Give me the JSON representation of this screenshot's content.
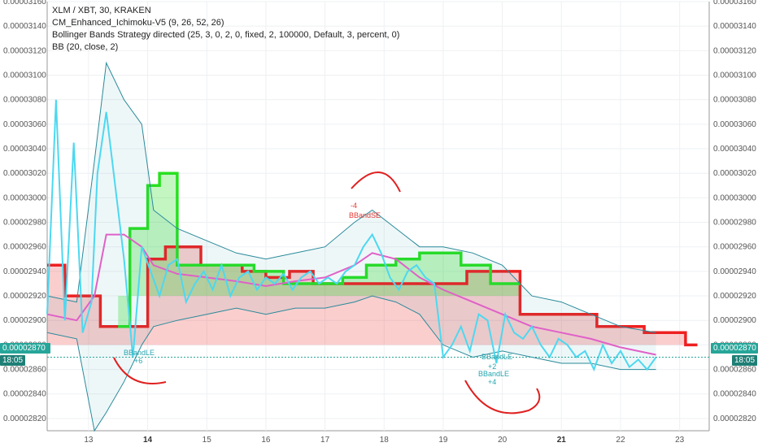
{
  "header": {
    "symbol_line": "XLM / XBT, 30, KRAKEN",
    "indicators": [
      "CM_Enhanced_Ichimoku-V5 (9, 26, 52, 26)",
      "Bollinger Bands Strategy directed (25, 3, 0, 2, 0, fixed, 2, 100000, Default, 3, percent, 0)",
      "BB (20, close, 2)"
    ]
  },
  "price_tag": {
    "price": "0.00002870",
    "countdown": "18:05",
    "color": "#26a69a"
  },
  "annotations": [
    {
      "text": "BBandSE",
      "color": "#e53935"
    },
    {
      "text": "-4",
      "color": "#e53935"
    },
    {
      "text": "BBandLE",
      "color": "#26a6b0"
    },
    {
      "text": "+6",
      "color": "#26a6b0"
    },
    {
      "text": "BBandLE",
      "color": "#26a6b0"
    },
    {
      "text": "+2",
      "color": "#26a6b0"
    },
    {
      "text": "BBandLE",
      "color": "#26a6b0"
    },
    {
      "text": "+4",
      "color": "#26a6b0"
    }
  ],
  "chart_data": {
    "type": "line",
    "title": "XLM / XBT, 30, KRAKEN",
    "x_ticks": [
      "13",
      "14",
      "15",
      "16",
      "17",
      "18",
      "19",
      "20",
      "21",
      "22",
      "23"
    ],
    "x_ticks_bold": [
      "14",
      "21"
    ],
    "xlim": [
      12.3,
      23.5
    ],
    "ylim": [
      2.81e-05,
      3.16e-05
    ],
    "y_ticks": [
      "0.00002820",
      "0.00002840",
      "0.00002860",
      "0.00002880",
      "0.00002900",
      "0.00002920",
      "0.00002940",
      "0.00002960",
      "0.00002980",
      "0.00003000",
      "0.00003020",
      "0.00003040",
      "0.00003060",
      "0.00003080",
      "0.00003100",
      "0.00003120",
      "0.00003140",
      "0.00003160"
    ],
    "current_price": 2.87e-05,
    "colors": {
      "close": "#4dd8f0",
      "ichimoku_up": "#28e020",
      "ichimoku_down": "#ee2020",
      "bb": "#2a8a9a",
      "basis": "#e060c8"
    },
    "series": [
      {
        "role": "close",
        "x": [
          12.3,
          12.45,
          12.6,
          12.75,
          12.9,
          13.05,
          13.15,
          13.3,
          13.45,
          13.6,
          13.75,
          13.9,
          14.05,
          14.2,
          14.35,
          14.5,
          14.65,
          14.8,
          14.95,
          15.1,
          15.25,
          15.4,
          15.55,
          15.7,
          15.85,
          16.0,
          16.15,
          16.3,
          16.45,
          16.6,
          16.75,
          16.9,
          17.05,
          17.2,
          17.35,
          17.5,
          17.65,
          17.8,
          17.95,
          18.1,
          18.25,
          18.4,
          18.55,
          18.7,
          18.85,
          19.0,
          19.15,
          19.3,
          19.45,
          19.6,
          19.75,
          19.9,
          20.05,
          20.2,
          20.35,
          20.5,
          20.65,
          20.8,
          20.95,
          21.1,
          21.25,
          21.4,
          21.55,
          21.7,
          21.85,
          22.0,
          22.15,
          22.3,
          22.45,
          22.6
        ],
        "y": [
          2.905e-05,
          3.08e-05,
          2.9e-05,
          3.045e-05,
          2.89e-05,
          2.915e-05,
          3.02e-05,
          3.07e-05,
          3.01e-05,
          2.95e-05,
          2.87e-05,
          2.96e-05,
          2.94e-05,
          2.92e-05,
          2.945e-05,
          2.95e-05,
          2.915e-05,
          2.93e-05,
          2.94e-05,
          2.925e-05,
          2.945e-05,
          2.92e-05,
          2.935e-05,
          2.94e-05,
          2.925e-05,
          2.935e-05,
          2.93e-05,
          2.938e-05,
          2.925e-05,
          2.935e-05,
          2.94e-05,
          2.93e-05,
          2.935e-05,
          2.93e-05,
          2.94e-05,
          2.945e-05,
          2.96e-05,
          2.97e-05,
          2.955e-05,
          2.935e-05,
          2.925e-05,
          2.94e-05,
          2.945e-05,
          2.935e-05,
          2.93e-05,
          2.87e-05,
          2.88e-05,
          2.895e-05,
          2.875e-05,
          2.905e-05,
          2.9e-05,
          2.865e-05,
          2.905e-05,
          2.89e-05,
          2.885e-05,
          2.895e-05,
          2.88e-05,
          2.87e-05,
          2.885e-05,
          2.88e-05,
          2.87e-05,
          2.875e-05,
          2.86e-05,
          2.88e-05,
          2.865e-05,
          2.875e-05,
          2.862e-05,
          2.868e-05,
          2.86e-05,
          2.87e-05
        ]
      },
      {
        "role": "bb_upper",
        "x": [
          12.3,
          12.8,
          13.1,
          13.3,
          13.6,
          13.9,
          14.1,
          14.5,
          15.0,
          15.5,
          16.0,
          16.5,
          17.0,
          17.5,
          17.8,
          18.2,
          18.6,
          19.0,
          19.5,
          20.0,
          20.5,
          21.0,
          21.5,
          22.0,
          22.6
        ],
        "y": [
          2.92e-05,
          2.915e-05,
          3.03e-05,
          3.11e-05,
          3.08e-05,
          3.06e-05,
          2.99e-05,
          2.975e-05,
          2.965e-05,
          2.955e-05,
          2.95e-05,
          2.955e-05,
          2.96e-05,
          2.98e-05,
          2.99e-05,
          2.975e-05,
          2.96e-05,
          2.96e-05,
          2.955e-05,
          2.945e-05,
          2.92e-05,
          2.915e-05,
          2.905e-05,
          2.895e-05,
          2.89e-05
        ]
      },
      {
        "role": "bb_lower",
        "x": [
          12.3,
          12.8,
          13.1,
          13.3,
          13.6,
          13.9,
          14.1,
          14.5,
          15.0,
          15.5,
          16.0,
          16.5,
          17.0,
          17.5,
          17.8,
          18.2,
          18.6,
          19.0,
          19.5,
          20.0,
          20.5,
          21.0,
          21.5,
          22.0,
          22.6
        ],
        "y": [
          2.89e-05,
          2.885e-05,
          2.81e-05,
          2.825e-05,
          2.85e-05,
          2.88e-05,
          2.895e-05,
          2.9e-05,
          2.905e-05,
          2.91e-05,
          2.905e-05,
          2.91e-05,
          2.91e-05,
          2.915e-05,
          2.92e-05,
          2.915e-05,
          2.905e-05,
          2.88e-05,
          2.87e-05,
          2.875e-05,
          2.87e-05,
          2.865e-05,
          2.865e-05,
          2.86e-05,
          2.86e-05
        ]
      },
      {
        "role": "bb_basis",
        "x": [
          12.3,
          12.8,
          13.1,
          13.3,
          13.6,
          13.9,
          14.1,
          14.5,
          15.0,
          15.5,
          16.0,
          16.5,
          17.0,
          17.5,
          17.8,
          18.2,
          18.6,
          19.0,
          19.5,
          20.0,
          20.5,
          21.0,
          21.5,
          22.0,
          22.6
        ],
        "y": [
          2.905e-05,
          2.9e-05,
          2.92e-05,
          2.97e-05,
          2.97e-05,
          2.96e-05,
          2.945e-05,
          2.938e-05,
          2.935e-05,
          2.932e-05,
          2.928e-05,
          2.932e-05,
          2.935e-05,
          2.945e-05,
          2.955e-05,
          2.95e-05,
          2.935e-05,
          2.925e-05,
          2.915e-05,
          2.905e-05,
          2.895e-05,
          2.89e-05,
          2.885e-05,
          2.878e-05,
          2.872e-05
        ]
      },
      {
        "role": "ichimoku_cloud_red",
        "x": [
          12.3,
          12.6,
          12.9,
          13.2,
          13.5,
          13.7,
          14.0,
          14.3,
          14.6,
          14.9,
          15.2,
          15.6,
          16.0,
          16.4,
          16.8,
          17.2,
          19.4,
          19.8,
          20.3,
          20.8,
          21.2,
          21.6,
          22.0,
          22.4,
          22.8,
          23.1,
          23.3
        ],
        "y": [
          2.945e-05,
          2.92e-05,
          2.92e-05,
          2.895e-05,
          2.895e-05,
          2.895e-05,
          2.95e-05,
          2.96e-05,
          2.96e-05,
          2.945e-05,
          2.945e-05,
          2.94e-05,
          2.935e-05,
          2.94e-05,
          2.93e-05,
          2.93e-05,
          2.94e-05,
          2.94e-05,
          2.905e-05,
          2.905e-05,
          2.905e-05,
          2.895e-05,
          2.895e-05,
          2.89e-05,
          2.89e-05,
          2.88e-05,
          2.88e-05
        ]
      },
      {
        "role": "ichimoku_cloud_green",
        "x": [
          13.5,
          13.7,
          14.0,
          14.2,
          14.5,
          14.9,
          15.3,
          15.8,
          16.3,
          17.3,
          17.7,
          18.2,
          18.6,
          19.0,
          19.3,
          19.8,
          20.3
        ],
        "y": [
          2.895e-05,
          2.975e-05,
          3.01e-05,
          3.02e-05,
          2.945e-05,
          2.945e-05,
          2.945e-05,
          2.94e-05,
          2.93e-05,
          2.935e-05,
          2.945e-05,
          2.95e-05,
          2.955e-05,
          2.955e-05,
          2.945e-05,
          2.93e-05,
          2.93e-05
        ]
      }
    ]
  }
}
